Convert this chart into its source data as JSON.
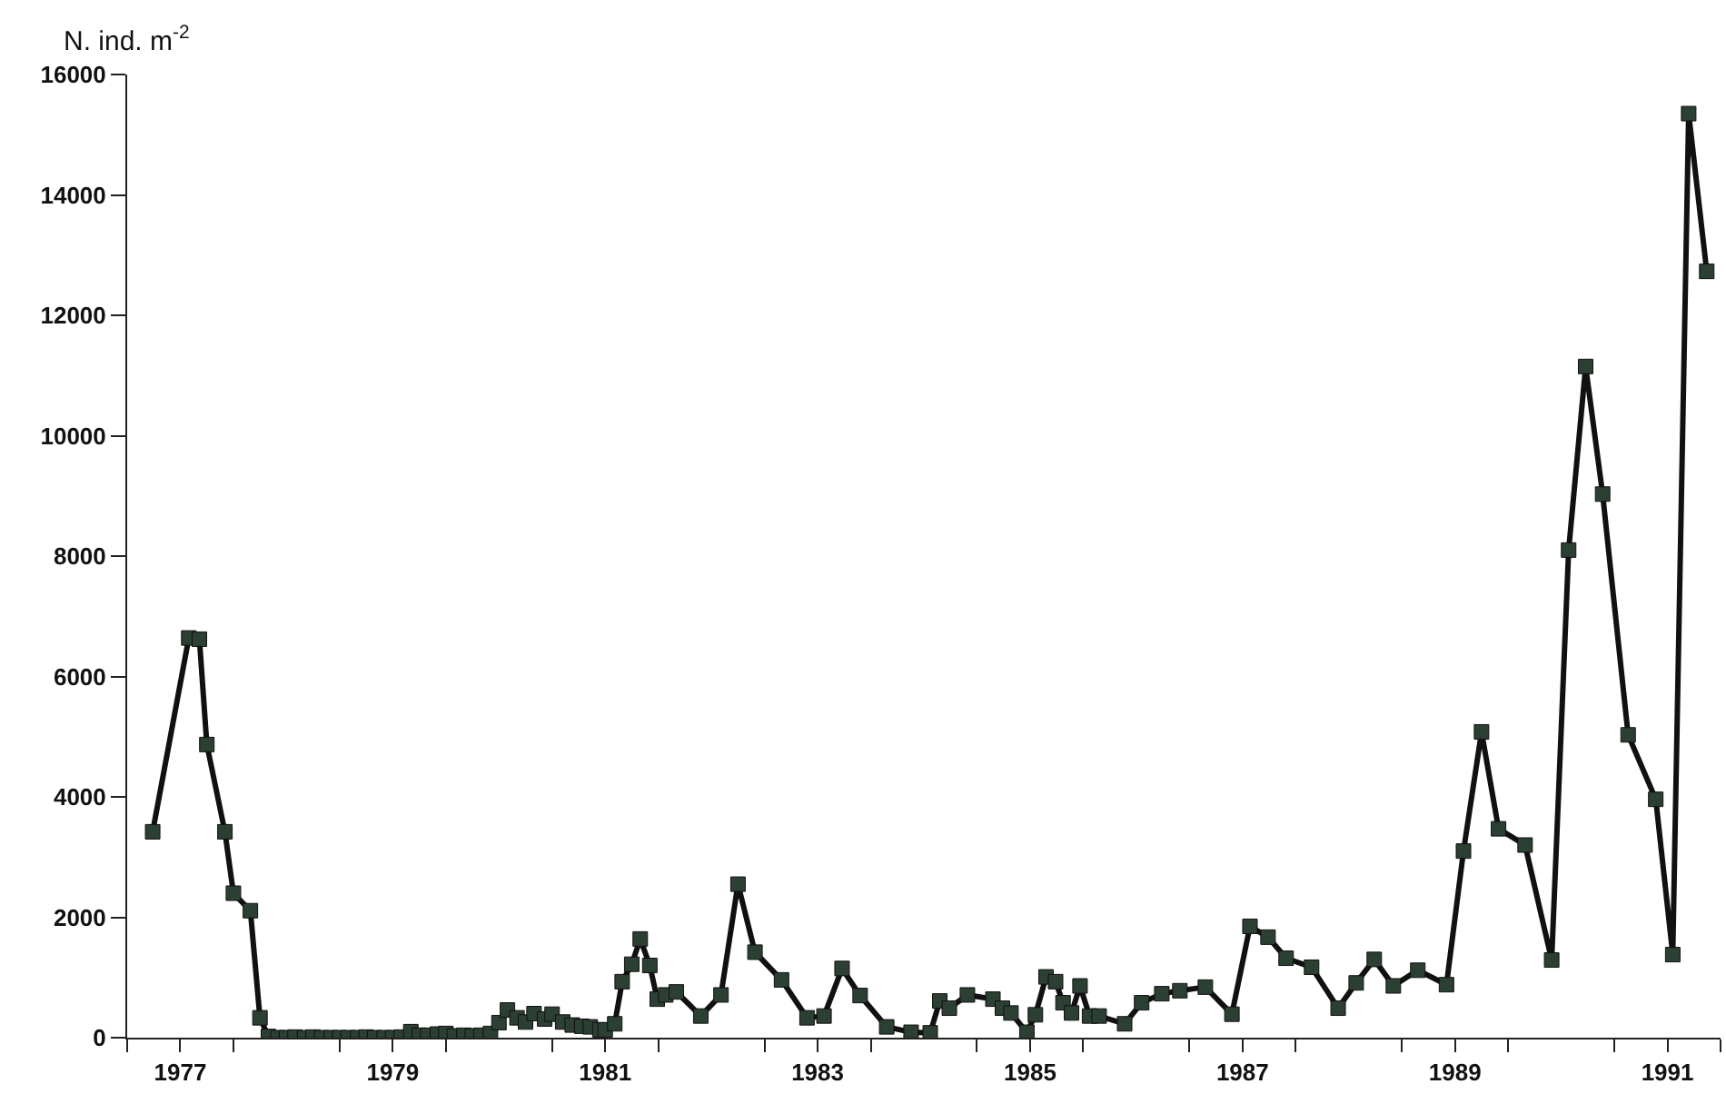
{
  "chart_data": {
    "type": "line",
    "ylabel": "N. ind. m$^{-2}$",
    "marker": "square",
    "line_style": "solid",
    "grid": false,
    "x": [
      1977.24,
      1977.58,
      1977.68,
      1977.75,
      1977.92,
      1978.0,
      1978.16,
      1978.25,
      1978.33,
      1978.42,
      1978.5,
      1978.58,
      1978.67,
      1978.75,
      1978.83,
      1978.92,
      1979.0,
      1979.08,
      1979.17,
      1979.25,
      1979.33,
      1979.42,
      1979.5,
      1979.58,
      1979.67,
      1979.75,
      1979.83,
      1979.92,
      1980.0,
      1980.08,
      1980.17,
      1980.25,
      1980.33,
      1980.42,
      1980.5,
      1980.58,
      1980.67,
      1980.75,
      1980.83,
      1980.93,
      1981.0,
      1981.1,
      1981.19,
      1981.28,
      1981.36,
      1981.45,
      1981.5,
      1981.59,
      1981.66,
      1981.75,
      1981.83,
      1981.92,
      1981.99,
      1982.07,
      1982.17,
      1982.4,
      1982.59,
      1982.75,
      1982.91,
      1983.16,
      1983.4,
      1983.56,
      1983.73,
      1983.9,
      1984.15,
      1984.38,
      1984.56,
      1984.65,
      1984.74,
      1984.91,
      1985.15,
      1985.24,
      1985.32,
      1985.47,
      1985.55,
      1985.65,
      1985.74,
      1985.81,
      1985.89,
      1985.97,
      1986.06,
      1986.15,
      1986.39,
      1986.55,
      1986.74,
      1986.91,
      1987.15,
      1987.4,
      1987.57,
      1987.74,
      1987.91,
      1988.15,
      1988.4,
      1988.57,
      1988.74,
      1988.92,
      1989.15,
      1989.42,
      1989.58,
      1989.75,
      1989.91,
      1990.16,
      1990.41,
      1990.57,
      1990.73,
      1990.89,
      1991.13,
      1991.39,
      1991.55,
      1991.7,
      1991.87
    ],
    "series": [
      {
        "color": "#2b3f33",
        "values": [
          3420,
          6640,
          6620,
          4870,
          3420,
          2400,
          2110,
          330,
          20,
          0,
          0,
          10,
          0,
          10,
          0,
          0,
          0,
          0,
          0,
          10,
          0,
          0,
          0,
          10,
          100,
          40,
          40,
          60,
          70,
          30,
          40,
          30,
          40,
          70,
          250,
          460,
          330,
          260,
          400,
          310,
          390,
          260,
          210,
          190,
          180,
          130,
          130,
          230,
          930,
          1220,
          1640,
          1200,
          640,
          710,
          760,
          360,
          710,
          2550,
          1420,
          960,
          330,
          360,
          1150,
          700,
          180,
          90,
          80,
          610,
          490,
          710,
          640,
          490,
          410,
          90,
          380,
          1010,
          930,
          580,
          410,
          860,
          360,
          360,
          230,
          580,
          730,
          780,
          840,
          390,
          1850,
          1670,
          1320,
          1170,
          490,
          910,
          1300,
          860,
          1120,
          880,
          3100,
          5080,
          3470,
          3200,
          1290,
          8100,
          11150,
          9030,
          5030,
          3960,
          1380,
          15350,
          12730
        ]
      }
    ],
    "xlim": [
      1977,
      1992
    ],
    "xticks": [
      {
        "value": 1977,
        "label": null
      },
      {
        "value": 1977.5,
        "label": "1977"
      },
      {
        "value": 1978,
        "label": null
      },
      {
        "value": 1979,
        "label": null
      },
      {
        "value": 1979.5,
        "label": "1979"
      },
      {
        "value": 1980,
        "label": null
      },
      {
        "value": 1981,
        "label": null
      },
      {
        "value": 1981.5,
        "label": "1981"
      },
      {
        "value": 1982,
        "label": null
      },
      {
        "value": 1983,
        "label": null
      },
      {
        "value": 1983.5,
        "label": "1983"
      },
      {
        "value": 1984,
        "label": null
      },
      {
        "value": 1985,
        "label": null
      },
      {
        "value": 1985.5,
        "label": "1985"
      },
      {
        "value": 1986,
        "label": null
      },
      {
        "value": 1987,
        "label": null
      },
      {
        "value": 1987.5,
        "label": "1987"
      },
      {
        "value": 1988,
        "label": null
      },
      {
        "value": 1989,
        "label": null
      },
      {
        "value": 1989.5,
        "label": "1989"
      },
      {
        "value": 1990,
        "label": null
      },
      {
        "value": 1991,
        "label": null
      },
      {
        "value": 1991.5,
        "label": "1991"
      },
      {
        "value": 1992,
        "label": null
      }
    ],
    "ylim": [
      0,
      16000
    ],
    "yticks": [
      0,
      2000,
      4000,
      6000,
      8000,
      10000,
      12000,
      14000,
      16000
    ]
  }
}
